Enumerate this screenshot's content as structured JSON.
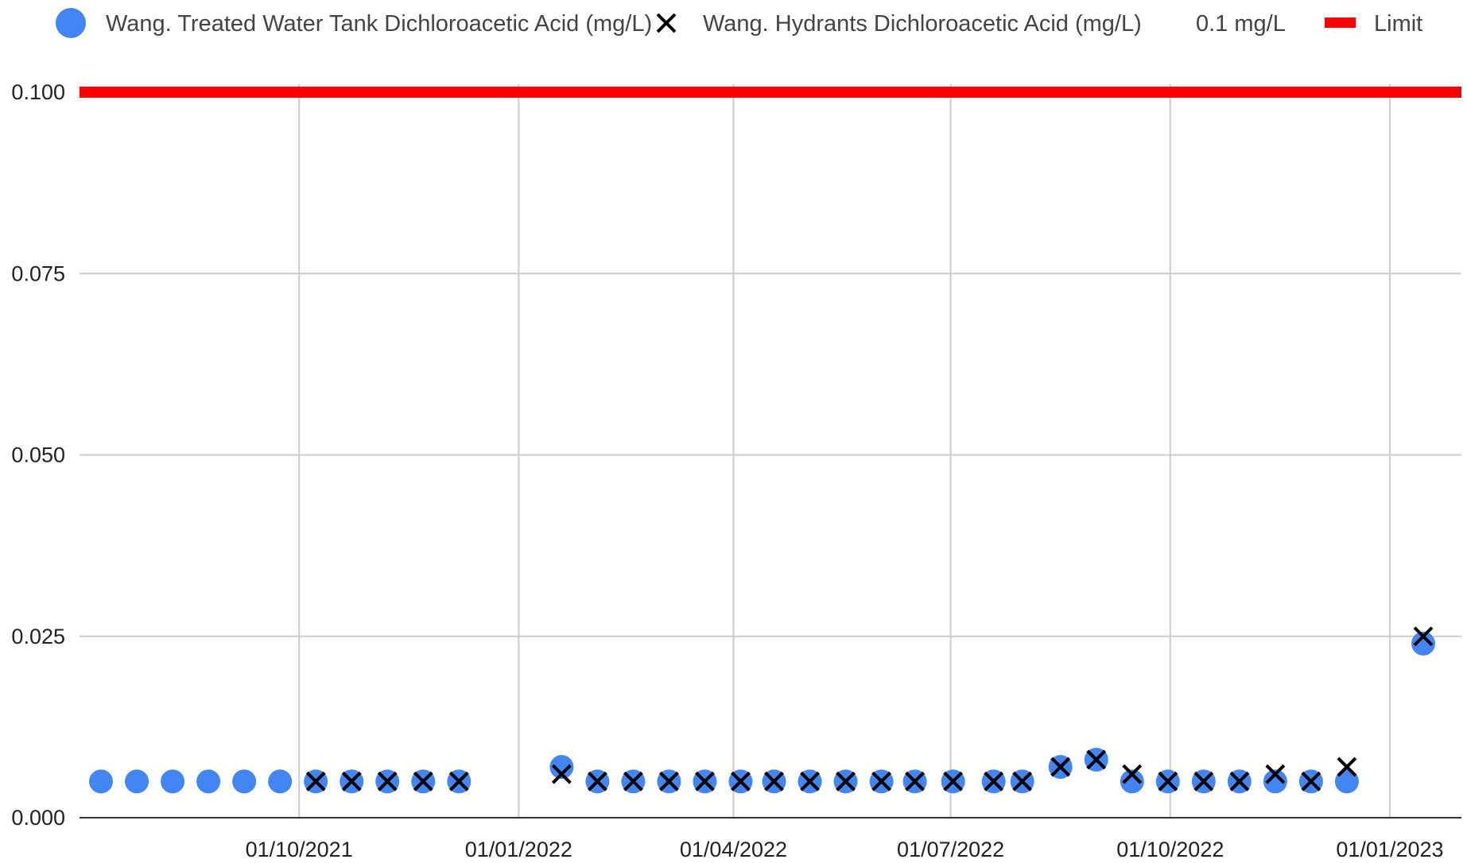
{
  "chart_data": {
    "type": "scatter",
    "title": "",
    "xlabel": "",
    "ylabel": "",
    "xlim": [
      "2021-07-01",
      "2023-01-31"
    ],
    "ylim": [
      0,
      0.1
    ],
    "x_ticks": [
      {
        "date": "2021-10-01",
        "label": "01/10/2021"
      },
      {
        "date": "2022-01-01",
        "label": "01/01/2022"
      },
      {
        "date": "2022-04-01",
        "label": "01/04/2022"
      },
      {
        "date": "2022-07-01",
        "label": "01/07/2022"
      },
      {
        "date": "2022-10-01",
        "label": "01/10/2022"
      },
      {
        "date": "2023-01-01",
        "label": "01/01/2023"
      }
    ],
    "y_ticks": [
      {
        "value": 0,
        "label": "0.000"
      },
      {
        "value": 0.025,
        "label": "0.025"
      },
      {
        "value": 0.05,
        "label": "0.050"
      },
      {
        "value": 0.075,
        "label": "0.075"
      },
      {
        "value": 0.1,
        "label": "0.100"
      }
    ],
    "grid": true,
    "legend_position": "top",
    "series": [
      {
        "name": "Wang. Treated Water Tank Dichloroacetic Acid (mg/L)",
        "marker": "circle",
        "color": "#4285F4",
        "points": [
          {
            "x": "2021-07-10",
            "y": 0.005
          },
          {
            "x": "2021-07-25",
            "y": 0.005
          },
          {
            "x": "2021-08-09",
            "y": 0.005
          },
          {
            "x": "2021-08-24",
            "y": 0.005
          },
          {
            "x": "2021-09-08",
            "y": 0.005
          },
          {
            "x": "2021-09-23",
            "y": 0.005
          },
          {
            "x": "2021-10-08",
            "y": 0.005
          },
          {
            "x": "2021-10-23",
            "y": 0.005
          },
          {
            "x": "2021-11-07",
            "y": 0.005
          },
          {
            "x": "2021-11-22",
            "y": 0.005
          },
          {
            "x": "2021-12-07",
            "y": 0.005
          },
          {
            "x": "2022-01-19",
            "y": 0.007
          },
          {
            "x": "2022-02-03",
            "y": 0.005
          },
          {
            "x": "2022-02-18",
            "y": 0.005
          },
          {
            "x": "2022-03-05",
            "y": 0.005
          },
          {
            "x": "2022-03-20",
            "y": 0.005
          },
          {
            "x": "2022-04-04",
            "y": 0.005
          },
          {
            "x": "2022-04-18",
            "y": 0.005
          },
          {
            "x": "2022-05-03",
            "y": 0.005
          },
          {
            "x": "2022-05-18",
            "y": 0.005
          },
          {
            "x": "2022-06-02",
            "y": 0.005
          },
          {
            "x": "2022-06-16",
            "y": 0.005
          },
          {
            "x": "2022-07-02",
            "y": 0.005
          },
          {
            "x": "2022-07-19",
            "y": 0.005
          },
          {
            "x": "2022-07-31",
            "y": 0.005
          },
          {
            "x": "2022-08-16",
            "y": 0.007
          },
          {
            "x": "2022-08-31",
            "y": 0.008
          },
          {
            "x": "2022-09-15",
            "y": 0.005
          },
          {
            "x": "2022-09-30",
            "y": 0.005
          },
          {
            "x": "2022-10-15",
            "y": 0.005
          },
          {
            "x": "2022-10-30",
            "y": 0.005
          },
          {
            "x": "2022-11-14",
            "y": 0.005
          },
          {
            "x": "2022-11-29",
            "y": 0.005
          },
          {
            "x": "2022-12-14",
            "y": 0.005
          },
          {
            "x": "2023-01-15",
            "y": 0.024
          }
        ]
      },
      {
        "name": "Wang. Hydrants Dichloroacetic Acid (mg/L)",
        "marker": "x",
        "color": "#000000",
        "points": [
          {
            "x": "2021-10-08",
            "y": 0.005
          },
          {
            "x": "2021-10-23",
            "y": 0.005
          },
          {
            "x": "2021-11-07",
            "y": 0.005
          },
          {
            "x": "2021-11-22",
            "y": 0.005
          },
          {
            "x": "2021-12-07",
            "y": 0.005
          },
          {
            "x": "2022-01-19",
            "y": 0.006
          },
          {
            "x": "2022-02-03",
            "y": 0.005
          },
          {
            "x": "2022-02-18",
            "y": 0.005
          },
          {
            "x": "2022-03-05",
            "y": 0.005
          },
          {
            "x": "2022-03-20",
            "y": 0.005
          },
          {
            "x": "2022-04-04",
            "y": 0.005
          },
          {
            "x": "2022-04-18",
            "y": 0.005
          },
          {
            "x": "2022-05-03",
            "y": 0.005
          },
          {
            "x": "2022-05-18",
            "y": 0.005
          },
          {
            "x": "2022-06-02",
            "y": 0.005
          },
          {
            "x": "2022-06-16",
            "y": 0.005
          },
          {
            "x": "2022-07-02",
            "y": 0.005
          },
          {
            "x": "2022-07-19",
            "y": 0.005
          },
          {
            "x": "2022-07-31",
            "y": 0.005
          },
          {
            "x": "2022-08-16",
            "y": 0.007
          },
          {
            "x": "2022-08-31",
            "y": 0.008
          },
          {
            "x": "2022-09-15",
            "y": 0.006
          },
          {
            "x": "2022-09-30",
            "y": 0.005
          },
          {
            "x": "2022-10-15",
            "y": 0.005
          },
          {
            "x": "2022-10-30",
            "y": 0.005
          },
          {
            "x": "2022-11-14",
            "y": 0.006
          },
          {
            "x": "2022-11-29",
            "y": 0.005
          },
          {
            "x": "2022-12-14",
            "y": 0.007
          },
          {
            "x": "2023-01-15",
            "y": 0.025
          }
        ]
      },
      {
        "name": "0.1 mg/L",
        "marker": "none",
        "color": "#ffffff",
        "points": []
      },
      {
        "name": "Limit",
        "marker": "line",
        "color": "#FF0000",
        "y_constant": 0.1
      }
    ]
  }
}
